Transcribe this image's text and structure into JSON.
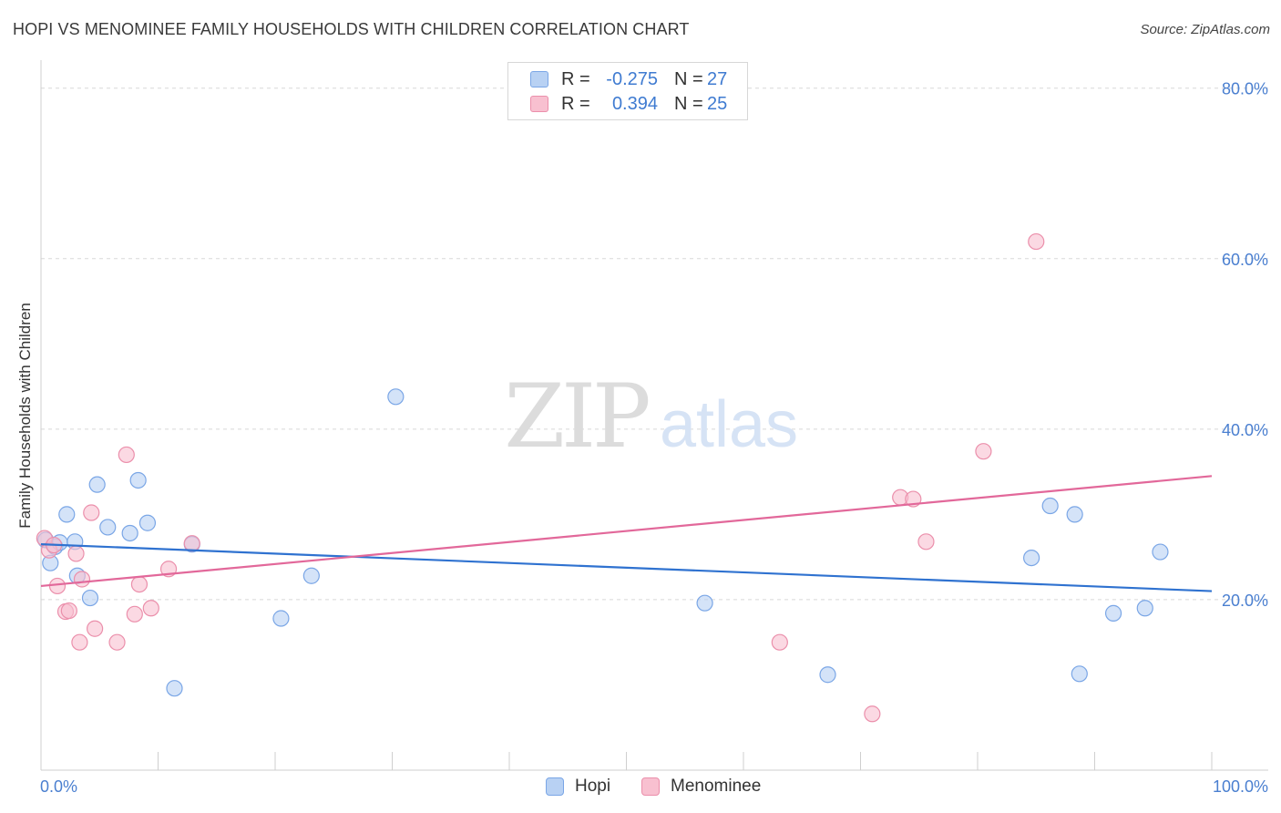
{
  "title": "HOPI VS MENOMINEE FAMILY HOUSEHOLDS WITH CHILDREN CORRELATION CHART",
  "source": "Source: ZipAtlas.com",
  "watermark": {
    "zip": "ZIP",
    "atlas": "atlas"
  },
  "legend": {
    "rows": [
      {
        "r_label": "R =",
        "r_value": "-0.275",
        "n_label": "N =",
        "n_value": "27"
      },
      {
        "r_label": "R =",
        "r_value": "0.394",
        "n_label": "N =",
        "n_value": "25"
      }
    ]
  },
  "bottom_legend": {
    "hopi": "Hopi",
    "menominee": "Menominee"
  },
  "colors": {
    "hopi_fill": "#b8d1f3",
    "hopi_stroke": "#7aa6e6",
    "hopi_line": "#2f72d0",
    "menominee_fill": "#f8c0d0",
    "menominee_stroke": "#eb8fab",
    "menominee_line": "#e2689a",
    "grid": "#d8d8d8",
    "axis_text": "#4a7fd0"
  },
  "chart_data": {
    "type": "scatter",
    "title": "HOPI VS MENOMINEE FAMILY HOUSEHOLDS WITH CHILDREN CORRELATION CHART",
    "xlabel": "",
    "ylabel": "Family Households with Children",
    "xlim": [
      0,
      100
    ],
    "ylim": [
      0,
      82
    ],
    "x_tick_labels": [
      "0.0%",
      "100.0%"
    ],
    "y_ticks": [
      20,
      40,
      60,
      80
    ],
    "y_tick_labels": [
      "20.0%",
      "40.0%",
      "60.0%",
      "80.0%"
    ],
    "grid": true,
    "series": [
      {
        "name": "Hopi",
        "r": -0.275,
        "n": 27,
        "trend": [
          [
            0,
            26.5
          ],
          [
            100,
            21.0
          ]
        ],
        "points": [
          [
            0.4,
            27.0
          ],
          [
            0.8,
            24.3
          ],
          [
            1.2,
            26.2
          ],
          [
            1.6,
            26.7
          ],
          [
            2.2,
            30.0
          ],
          [
            2.9,
            26.8
          ],
          [
            3.1,
            22.8
          ],
          [
            4.2,
            20.2
          ],
          [
            4.8,
            33.5
          ],
          [
            5.7,
            28.5
          ],
          [
            7.6,
            27.8
          ],
          [
            8.3,
            34.0
          ],
          [
            9.1,
            29.0
          ],
          [
            11.4,
            9.6
          ],
          [
            12.9,
            26.5
          ],
          [
            20.5,
            17.8
          ],
          [
            23.1,
            22.8
          ],
          [
            30.3,
            43.8
          ],
          [
            56.7,
            19.6
          ],
          [
            67.2,
            11.2
          ],
          [
            84.6,
            24.9
          ],
          [
            86.2,
            31.0
          ],
          [
            88.3,
            30.0
          ],
          [
            88.7,
            11.3
          ],
          [
            91.6,
            18.4
          ],
          [
            94.3,
            19.0
          ],
          [
            95.6,
            25.6
          ]
        ]
      },
      {
        "name": "Menominee",
        "r": 0.394,
        "n": 25,
        "trend": [
          [
            0,
            21.6
          ],
          [
            100,
            34.5
          ]
        ],
        "points": [
          [
            0.3,
            27.2
          ],
          [
            0.7,
            25.8
          ],
          [
            1.1,
            26.4
          ],
          [
            1.4,
            21.6
          ],
          [
            2.1,
            18.6
          ],
          [
            2.4,
            18.7
          ],
          [
            3.0,
            25.4
          ],
          [
            3.3,
            15.0
          ],
          [
            3.5,
            22.4
          ],
          [
            4.3,
            30.2
          ],
          [
            4.6,
            16.6
          ],
          [
            6.5,
            15.0
          ],
          [
            7.3,
            37.0
          ],
          [
            8.0,
            18.3
          ],
          [
            8.4,
            21.8
          ],
          [
            9.4,
            19.0
          ],
          [
            10.9,
            23.6
          ],
          [
            12.9,
            26.6
          ],
          [
            63.1,
            15.0
          ],
          [
            71.0,
            6.6
          ],
          [
            73.4,
            32.0
          ],
          [
            74.5,
            31.8
          ],
          [
            75.6,
            26.8
          ],
          [
            80.5,
            37.4
          ],
          [
            85.0,
            62.0
          ]
        ]
      }
    ]
  }
}
